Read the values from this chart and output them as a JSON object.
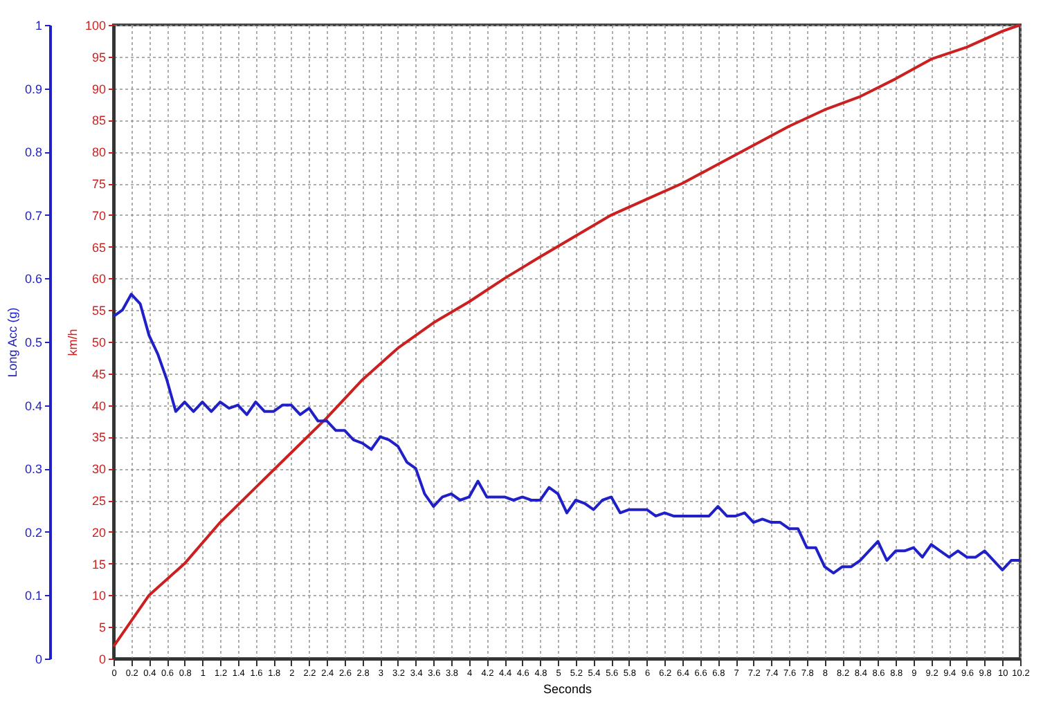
{
  "chart_data": {
    "type": "line",
    "xlabel": "Seconds",
    "ylabel": "km/h",
    "y2label": "Long Acc (g)",
    "xlim": [
      0,
      10.2
    ],
    "ylim": [
      0,
      100
    ],
    "y2lim": [
      0,
      1
    ],
    "xticks": [
      0,
      0.2,
      0.4,
      0.6,
      0.8,
      1,
      1.2,
      1.4,
      1.6,
      1.8,
      2,
      2.2,
      2.4,
      2.6,
      2.8,
      3,
      3.2,
      3.4,
      3.6,
      3.8,
      4,
      4.2,
      4.4,
      4.6,
      4.8,
      5,
      5.2,
      5.4,
      5.6,
      5.8,
      6,
      6.2,
      6.4,
      6.6,
      6.8,
      7,
      7.2,
      7.4,
      7.6,
      7.8,
      8,
      8.2,
      8.4,
      8.6,
      8.8,
      9,
      9.2,
      9.4,
      9.6,
      9.8,
      10,
      10.2
    ],
    "yticks": [
      0,
      5,
      10,
      15,
      20,
      25,
      30,
      35,
      40,
      45,
      50,
      55,
      60,
      65,
      70,
      75,
      80,
      85,
      90,
      95,
      100
    ],
    "y2ticks": [
      0,
      0.1,
      0.2,
      0.3,
      0.4,
      0.5,
      0.6,
      0.7,
      0.8,
      0.9,
      1
    ],
    "grid": true,
    "series": [
      {
        "color": "#cc1f1f",
        "x": [
          0,
          0.4,
          0.8,
          1.2,
          1.6,
          2,
          2.4,
          2.8,
          3.2,
          3.6,
          4,
          4.4,
          4.8,
          5.2,
          5.6,
          6,
          6.4,
          6.8,
          7.2,
          7.6,
          8,
          8.4,
          8.8,
          9.2,
          9.6,
          10,
          10.2
        ],
        "values": [
          1.9,
          10,
          15,
          21.5,
          27,
          32.5,
          38,
          44,
          49,
          53,
          56.3,
          60,
          63.4,
          66.7,
          70,
          72.5,
          75,
          78,
          81,
          84,
          86.6,
          88.7,
          91.5,
          94.6,
          96.5,
          99,
          100
        ]
      },
      {
        "color": "#2020c8",
        "axis": "y2",
        "x": [
          0,
          0.1,
          0.2,
          0.3,
          0.4,
          0.5,
          0.6,
          0.7,
          0.8,
          0.9,
          1,
          1.1,
          1.2,
          1.3,
          1.4,
          1.5,
          1.6,
          1.7,
          1.8,
          1.9,
          2,
          2.1,
          2.2,
          2.3,
          2.4,
          2.5,
          2.6,
          2.7,
          2.8,
          2.9,
          3,
          3.1,
          3.2,
          3.3,
          3.4,
          3.5,
          3.6,
          3.7,
          3.8,
          3.9,
          4,
          4.1,
          4.2,
          4.3,
          4.4,
          4.5,
          4.6,
          4.7,
          4.8,
          4.9,
          5,
          5.1,
          5.2,
          5.3,
          5.4,
          5.5,
          5.6,
          5.7,
          5.8,
          5.9,
          6,
          6.1,
          6.2,
          6.3,
          6.4,
          6.5,
          6.6,
          6.7,
          6.8,
          6.9,
          7,
          7.1,
          7.2,
          7.3,
          7.4,
          7.5,
          7.6,
          7.7,
          7.8,
          7.9,
          8,
          8.1,
          8.2,
          8.3,
          8.4,
          8.5,
          8.6,
          8.7,
          8.8,
          8.9,
          9,
          9.1,
          9.2,
          9.3,
          9.4,
          9.5,
          9.6,
          9.7,
          9.8,
          9.9,
          10,
          10.1,
          10.2
        ],
        "values": [
          0.54,
          0.55,
          0.575,
          0.56,
          0.51,
          0.48,
          0.44,
          0.39,
          0.405,
          0.39,
          0.405,
          0.39,
          0.405,
          0.395,
          0.4,
          0.385,
          0.405,
          0.39,
          0.39,
          0.4,
          0.4,
          0.385,
          0.395,
          0.375,
          0.375,
          0.36,
          0.36,
          0.345,
          0.34,
          0.33,
          0.35,
          0.345,
          0.335,
          0.31,
          0.3,
          0.26,
          0.24,
          0.255,
          0.26,
          0.25,
          0.255,
          0.28,
          0.255,
          0.255,
          0.255,
          0.25,
          0.255,
          0.25,
          0.25,
          0.27,
          0.26,
          0.23,
          0.25,
          0.245,
          0.235,
          0.25,
          0.255,
          0.23,
          0.235,
          0.235,
          0.235,
          0.225,
          0.23,
          0.225,
          0.225,
          0.225,
          0.225,
          0.225,
          0.24,
          0.225,
          0.225,
          0.23,
          0.215,
          0.22,
          0.215,
          0.215,
          0.205,
          0.205,
          0.175,
          0.175,
          0.145,
          0.135,
          0.145,
          0.145,
          0.155,
          0.17,
          0.185,
          0.155,
          0.17,
          0.17,
          0.175,
          0.16,
          0.18,
          0.17,
          0.16,
          0.17,
          0.16,
          0.16,
          0.17,
          0.155,
          0.14,
          0.155,
          0.155
        ]
      }
    ]
  }
}
